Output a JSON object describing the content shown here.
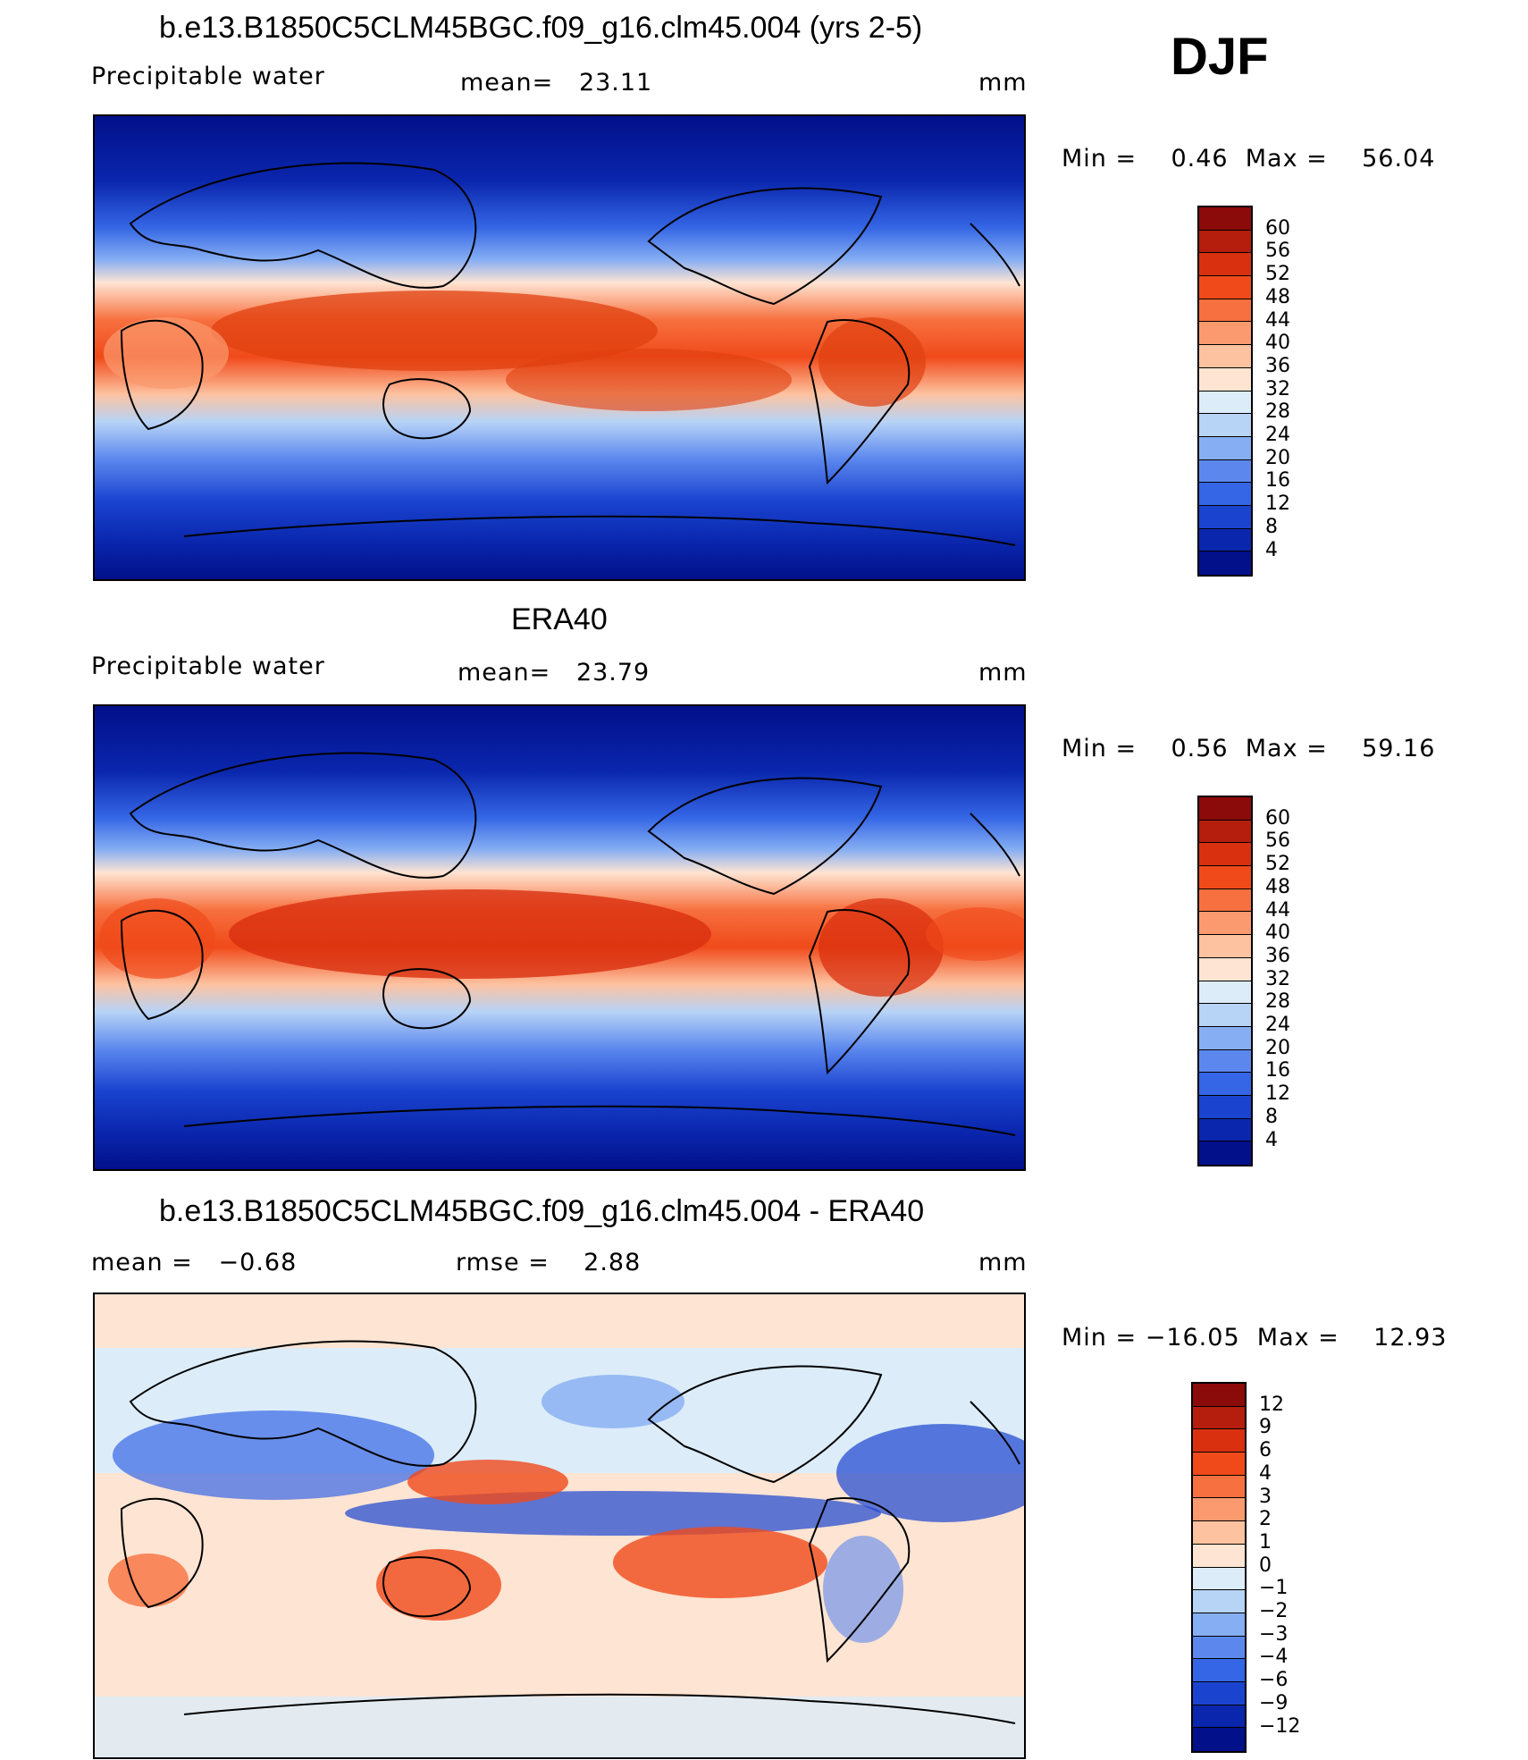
{
  "season": "DJF",
  "panels": [
    {
      "title": "b.e13.B1850C5CLM45BGC.f09_g16.clm45.004 (yrs 2-5)",
      "variable": "Precipitable water",
      "stat": "mean=   23.11",
      "units": "mm",
      "minmax": "Min =    0.46  Max =    56.04",
      "colorbar": {
        "labels": [
          "60",
          "56",
          "52",
          "48",
          "44",
          "40",
          "36",
          "32",
          "28",
          "24",
          "20",
          "16",
          "12",
          "8",
          "4"
        ],
        "colors": [
          "#8b0a0a",
          "#b51d0c",
          "#d9300f",
          "#f04a1a",
          "#f7703f",
          "#fb9a6e",
          "#fdc2a0",
          "#fee4d2",
          "#dcecf9",
          "#b7d3f6",
          "#86aef3",
          "#5c88ee",
          "#3466e5",
          "#1a44d0",
          "#0a26ad",
          "#02108a"
        ]
      }
    },
    {
      "title": "ERA40",
      "variable": "Precipitable water",
      "stat": "mean=   23.79",
      "units": "mm",
      "minmax": "Min =    0.56  Max =    59.16",
      "colorbar": {
        "labels": [
          "60",
          "56",
          "52",
          "48",
          "44",
          "40",
          "36",
          "32",
          "28",
          "24",
          "20",
          "16",
          "12",
          "8",
          "4"
        ],
        "colors": [
          "#8b0a0a",
          "#b51d0c",
          "#d9300f",
          "#f04a1a",
          "#f7703f",
          "#fb9a6e",
          "#fdc2a0",
          "#fee4d2",
          "#dcecf9",
          "#b7d3f6",
          "#86aef3",
          "#5c88ee",
          "#3466e5",
          "#1a44d0",
          "#0a26ad",
          "#02108a"
        ]
      }
    },
    {
      "title": "b.e13.B1850C5CLM45BGC.f09_g16.clm45.004 - ERA40",
      "variable": "mean =   −0.68",
      "stat": "rmse =    2.88",
      "units": "mm",
      "minmax": "Min = −16.05  Max =    12.93",
      "colorbar": {
        "labels": [
          "12",
          "9",
          "6",
          "4",
          "3",
          "2",
          "1",
          "0",
          "−1",
          "−2",
          "−3",
          "−4",
          "−6",
          "−9",
          "−12"
        ],
        "colors": [
          "#8b0a0a",
          "#b51d0c",
          "#d9300f",
          "#f04a1a",
          "#f7703f",
          "#fb9a6e",
          "#fdc2a0",
          "#fee4d2",
          "#dcecf9",
          "#b7d3f6",
          "#86aef3",
          "#5c88ee",
          "#3466e5",
          "#1a44d0",
          "#0a26ad",
          "#02108a"
        ]
      }
    }
  ]
}
